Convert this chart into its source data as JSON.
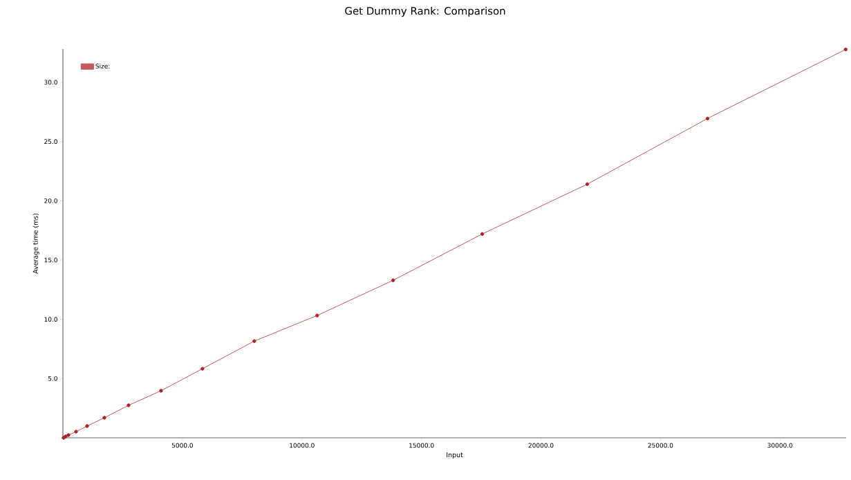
{
  "chart_data": {
    "type": "line",
    "title": "Get Dummy Rank: Comparison",
    "xlabel": "Input",
    "ylabel": "Average time (ms)",
    "x": [
      29,
      116,
      231,
      549,
      1012,
      1734,
      2746,
      4104,
      5838,
      8006,
      10636,
      13815,
      17543,
      21936,
      26965,
      32746
    ],
    "series": [
      {
        "name": "Size:",
        "color": "#b22222",
        "values": [
          0.0,
          0.12,
          0.23,
          0.52,
          0.99,
          1.69,
          2.74,
          3.97,
          5.83,
          8.16,
          10.32,
          13.29,
          17.2,
          21.4,
          26.94,
          32.77
        ]
      }
    ],
    "xlim": [
      0,
      32768
    ],
    "ylim": [
      0,
      32.8
    ],
    "xticks": [
      {
        "value": 5000,
        "label": "5000.0"
      },
      {
        "value": 10000,
        "label": "10000.0"
      },
      {
        "value": 15000,
        "label": "15000.0"
      },
      {
        "value": 20000,
        "label": "20000.0"
      },
      {
        "value": 25000,
        "label": "25000.0"
      },
      {
        "value": 30000,
        "label": "30000.0"
      }
    ],
    "yticks": [
      {
        "value": 5,
        "label": "5.0"
      },
      {
        "value": 10,
        "label": "10.0"
      },
      {
        "value": 15,
        "label": "15.0"
      },
      {
        "value": 20,
        "label": "20.0"
      },
      {
        "value": 25,
        "label": "25.0"
      },
      {
        "value": 30,
        "label": "30.0"
      }
    ],
    "legend": "top left",
    "marker": "circle",
    "line_style": "solid",
    "grid": false
  }
}
